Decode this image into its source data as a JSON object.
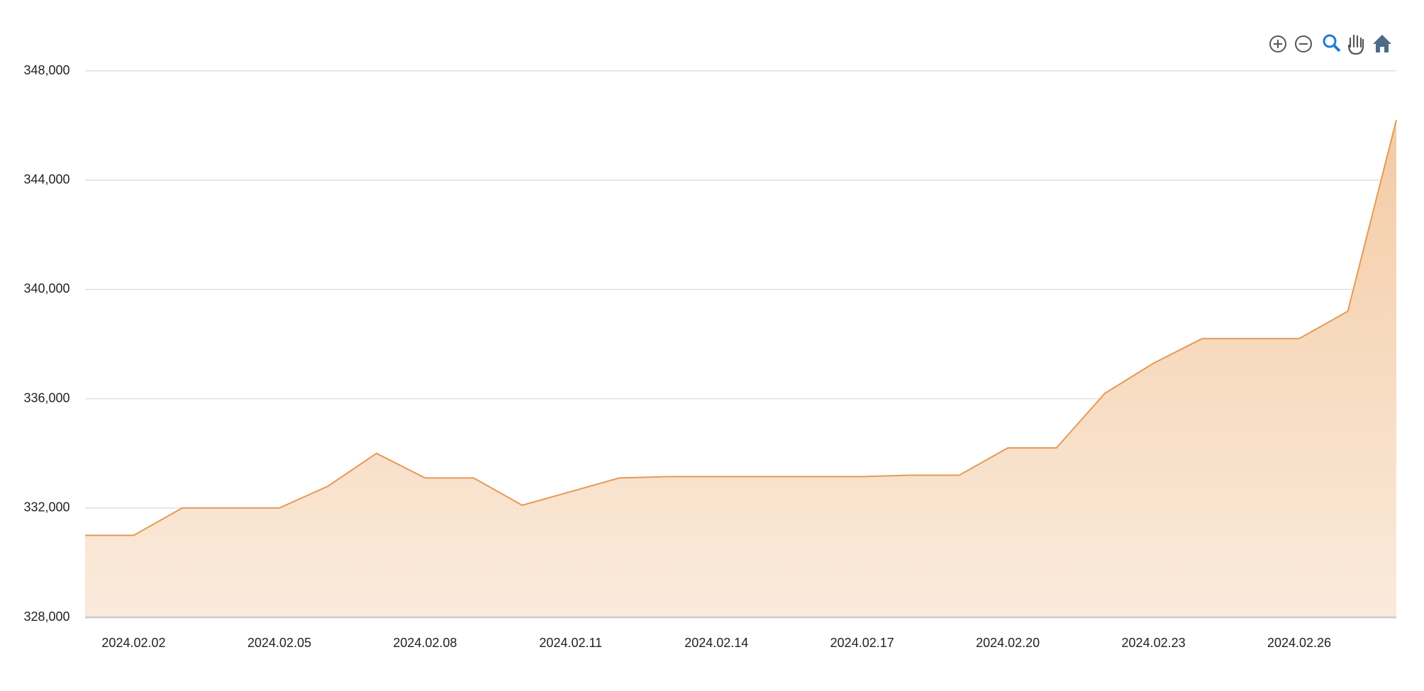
{
  "chart_data": {
    "type": "area",
    "x": [
      "2024.02.01",
      "2024.02.02",
      "2024.02.03",
      "2024.02.04",
      "2024.02.05",
      "2024.02.06",
      "2024.02.07",
      "2024.02.08",
      "2024.02.09",
      "2024.02.10",
      "2024.02.11",
      "2024.02.12",
      "2024.02.13",
      "2024.02.14",
      "2024.02.15",
      "2024.02.16",
      "2024.02.17",
      "2024.02.18",
      "2024.02.19",
      "2024.02.20",
      "2024.02.21",
      "2024.02.22",
      "2024.02.23",
      "2024.02.24",
      "2024.02.25",
      "2024.02.26",
      "2024.02.27",
      "2024.02.28"
    ],
    "values": [
      331000,
      331000,
      332000,
      332000,
      332000,
      332800,
      334000,
      333100,
      333100,
      332100,
      332600,
      333100,
      333150,
      333150,
      333150,
      333150,
      333150,
      333200,
      333200,
      334200,
      334200,
      336200,
      337300,
      338200,
      338200,
      338200,
      339200,
      346200
    ],
    "color": "#e69a55",
    "xlim": [
      "2024.02.01",
      "2024.02.28"
    ],
    "xticks": [
      "2024.02.02",
      "2024.02.05",
      "2024.02.08",
      "2024.02.11",
      "2024.02.14",
      "2024.02.17",
      "2024.02.20",
      "2024.02.23",
      "2024.02.26"
    ],
    "ylim": [
      328000,
      348000
    ],
    "yticks": [
      {
        "value": 328000,
        "label": "328,000"
      },
      {
        "value": 332000,
        "label": "332,000"
      },
      {
        "value": 336000,
        "label": "336,000"
      },
      {
        "value": 340000,
        "label": "340,000"
      },
      {
        "value": 344000,
        "label": "344,000"
      },
      {
        "value": 348000,
        "label": "348,000"
      }
    ],
    "grid": true
  }
}
